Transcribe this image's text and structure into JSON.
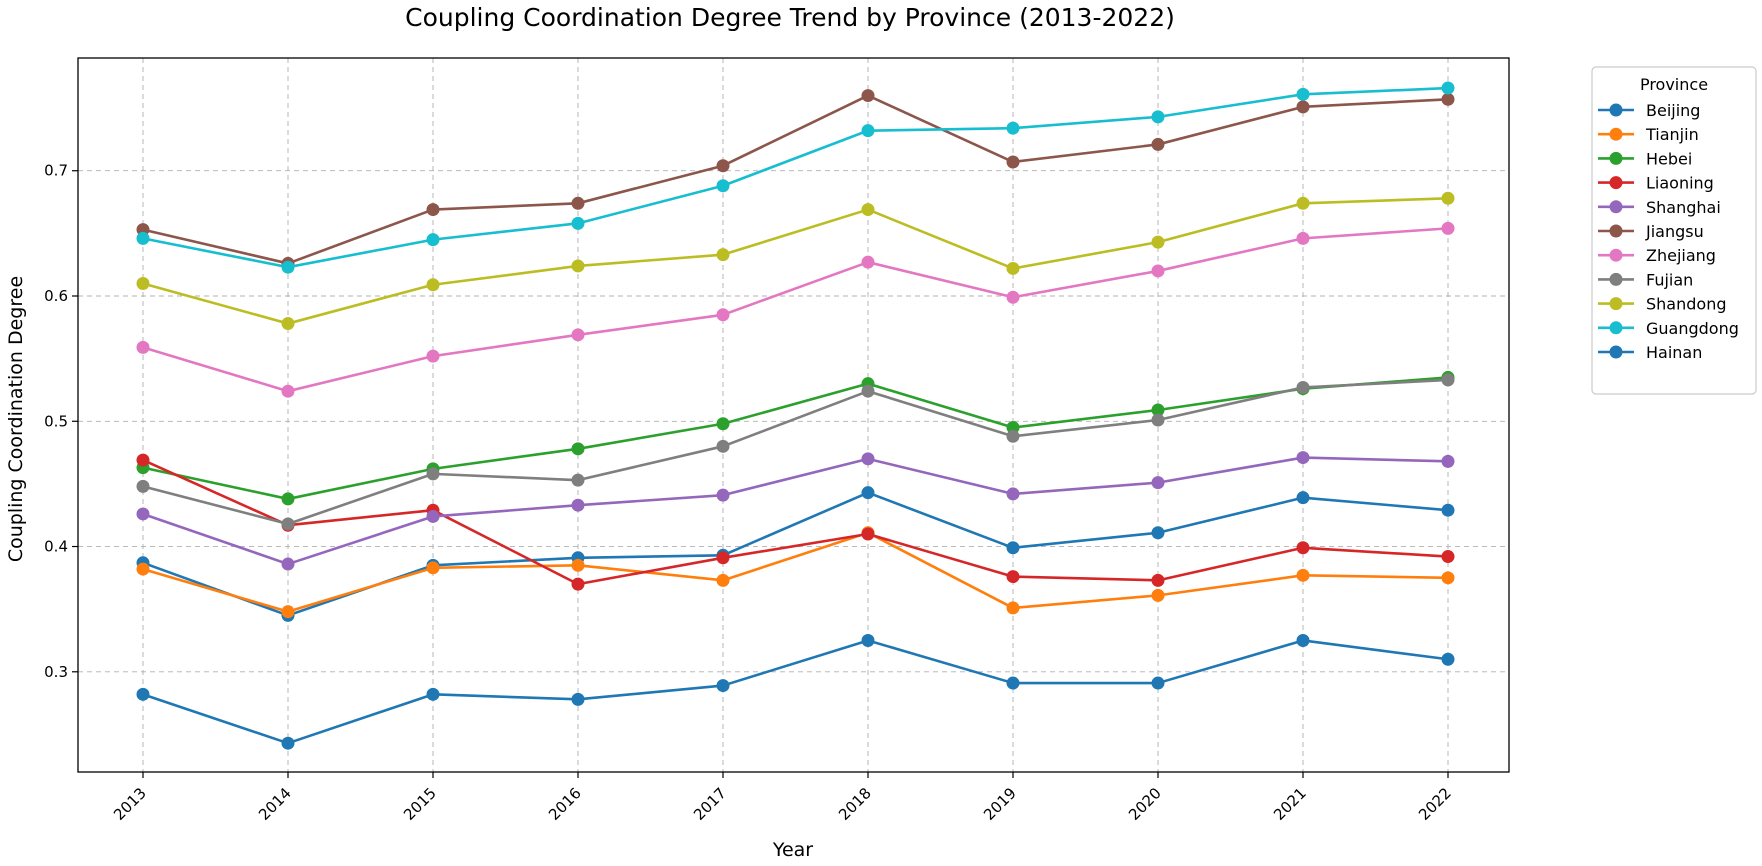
{
  "chart_data": {
    "type": "line",
    "title": "Coupling Coordination Degree Trend by Province (2013-2022)",
    "xlabel": "Year",
    "ylabel": "Coupling Coordination Degree",
    "x": [
      "2013",
      "2014",
      "2015",
      "2016",
      "2017",
      "2018",
      "2019",
      "2020",
      "2021",
      "2022"
    ],
    "ylim": [
      0.22,
      0.79
    ],
    "yticks": [
      0.3,
      0.4,
      0.5,
      0.6,
      0.7
    ],
    "ytick_labels": [
      "0.3",
      "0.4",
      "0.5",
      "0.6",
      "0.7"
    ],
    "grid": true,
    "legend_title": "Province",
    "legend_placement": "outside-right-top",
    "series": [
      {
        "name": "Beijing",
        "color": "#1f77b4",
        "values": [
          0.387,
          0.345,
          0.385,
          0.391,
          0.393,
          0.443,
          0.399,
          0.411,
          0.439,
          0.429
        ]
      },
      {
        "name": "Tianjin",
        "color": "#ff7f0e",
        "values": [
          0.382,
          0.348,
          0.383,
          0.385,
          0.373,
          0.411,
          0.351,
          0.361,
          0.377,
          0.375
        ]
      },
      {
        "name": "Hebei",
        "color": "#2ca02c",
        "values": [
          0.463,
          0.438,
          0.462,
          0.478,
          0.498,
          0.53,
          0.495,
          0.509,
          0.526,
          0.535
        ]
      },
      {
        "name": "Liaoning",
        "color": "#d62728",
        "values": [
          0.469,
          0.417,
          0.429,
          0.37,
          0.391,
          0.41,
          0.376,
          0.373,
          0.399,
          0.392
        ]
      },
      {
        "name": "Shanghai",
        "color": "#9467bd",
        "values": [
          0.426,
          0.386,
          0.424,
          0.433,
          0.441,
          0.47,
          0.442,
          0.451,
          0.471,
          0.468
        ]
      },
      {
        "name": "Jiangsu",
        "color": "#8c564b",
        "values": [
          0.653,
          0.626,
          0.669,
          0.674,
          0.704,
          0.76,
          0.707,
          0.721,
          0.751,
          0.757
        ]
      },
      {
        "name": "Zhejiang",
        "color": "#e377c2",
        "values": [
          0.559,
          0.524,
          0.552,
          0.569,
          0.585,
          0.627,
          0.599,
          0.62,
          0.646,
          0.654
        ]
      },
      {
        "name": "Fujian",
        "color": "#7f7f7f",
        "values": [
          0.448,
          0.418,
          0.458,
          0.453,
          0.48,
          0.524,
          0.488,
          0.501,
          0.527,
          0.533
        ]
      },
      {
        "name": "Shandong",
        "color": "#bcbd22",
        "values": [
          0.61,
          0.578,
          0.609,
          0.624,
          0.633,
          0.669,
          0.622,
          0.643,
          0.674,
          0.678
        ]
      },
      {
        "name": "Guangdong",
        "color": "#17becf",
        "values": [
          0.646,
          0.623,
          0.645,
          0.658,
          0.688,
          0.732,
          0.734,
          0.743,
          0.761,
          0.766
        ]
      },
      {
        "name": "Hainan",
        "color": "#1f77b4",
        "values": [
          0.282,
          0.243,
          0.282,
          0.278,
          0.289,
          0.325,
          0.291,
          0.291,
          0.325,
          0.31
        ]
      }
    ]
  }
}
